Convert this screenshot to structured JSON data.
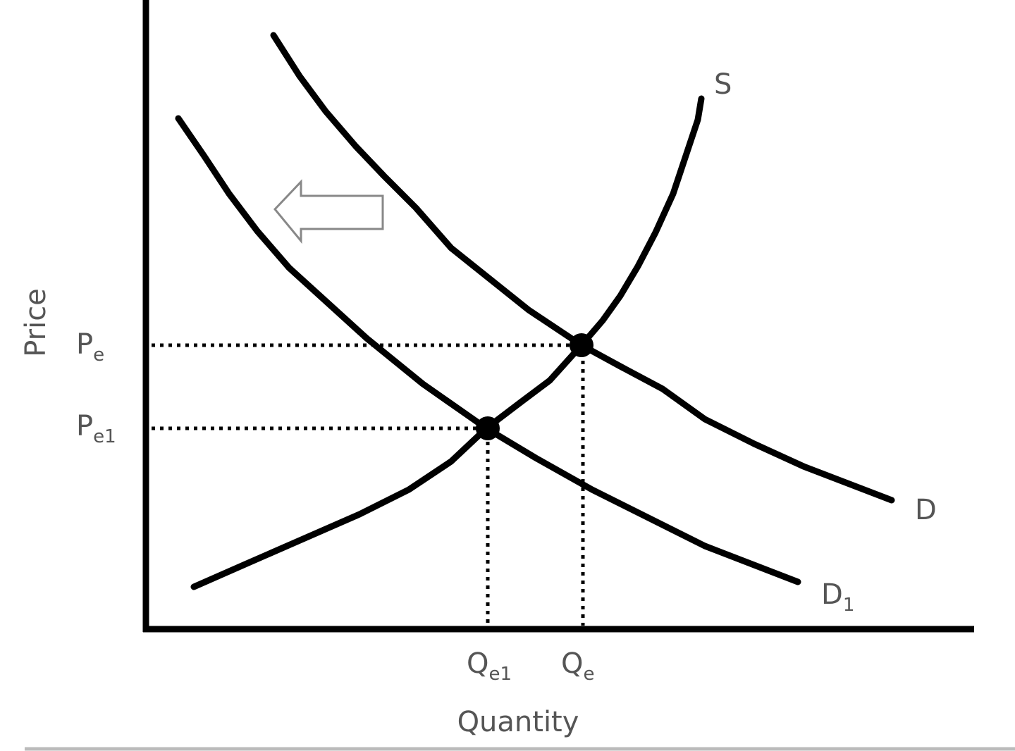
{
  "axes": {
    "y_label": "Price",
    "x_label": "Quantity"
  },
  "curves": {
    "supply": "S",
    "demand": {
      "base": "D"
    },
    "demand_new": {
      "base": "D",
      "sub": "1"
    }
  },
  "prices": [
    {
      "base": "P",
      "sub": "e"
    },
    {
      "base": "P",
      "sub": "e1"
    }
  ],
  "quantities": [
    {
      "base": "Q",
      "sub": "e1"
    },
    {
      "base": "Q",
      "sub": "e"
    }
  ]
}
